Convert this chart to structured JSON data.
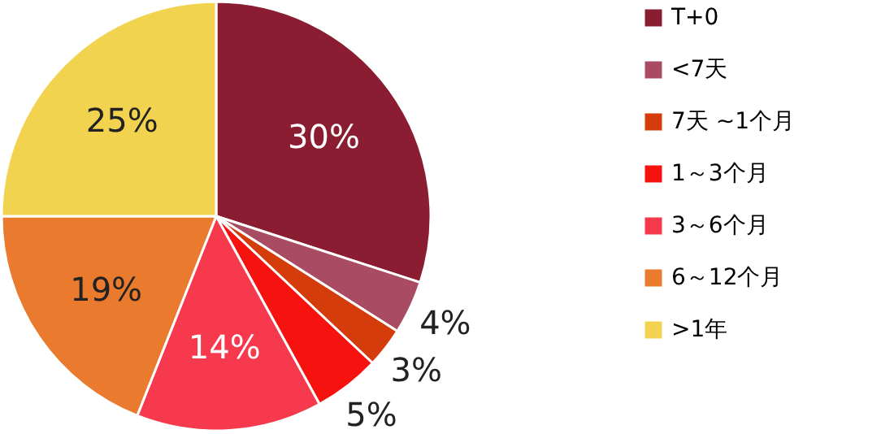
{
  "chart_data": {
    "type": "pie",
    "categories": [
      "T+0",
      "<7天",
      "7天 ~1个月",
      "1～3个月",
      "3～6个月",
      "6～12个月",
      ">1年"
    ],
    "values": [
      30,
      4,
      3,
      5,
      14,
      19,
      25
    ],
    "colors": [
      "#8b1d33",
      "#a84b63",
      "#d43c0c",
      "#f5120f",
      "#f7394e",
      "#ea7a2e",
      "#f2d34f"
    ],
    "value_labels": [
      "30%",
      "4%",
      "3%",
      "5%",
      "14%",
      "19%",
      "25%"
    ],
    "legend": "right"
  }
}
